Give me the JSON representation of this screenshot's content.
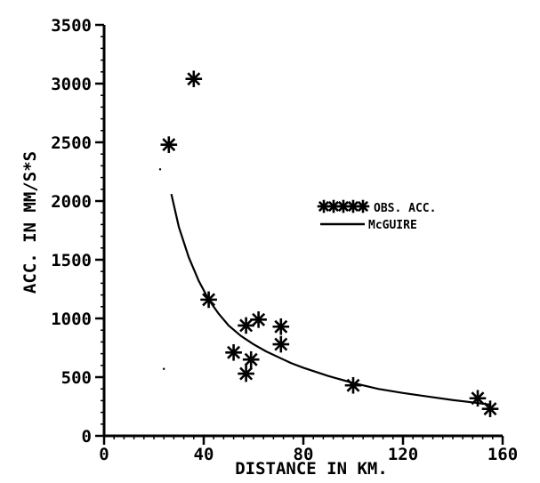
{
  "chart_data": {
    "type": "scatter",
    "xlabel": "DISTANCE IN KM.",
    "ylabel": "ACC. IN MM/S*S",
    "xlim": [
      0,
      160
    ],
    "ylim": [
      0,
      3500
    ],
    "xticks": [
      0,
      40,
      80,
      120,
      160
    ],
    "yticks": [
      0,
      500,
      1000,
      1500,
      2000,
      2500,
      3000,
      3500
    ],
    "x_minor_step": 4,
    "y_minor_step": 100,
    "grid": false,
    "legend_placement": "right",
    "series": [
      {
        "name": "OBS. ACC.",
        "kind": "scatter",
        "marker": "asterisk",
        "x": [
          26,
          36,
          42,
          52,
          57,
          57,
          59,
          62,
          71,
          71,
          100,
          150,
          155
        ],
        "y": [
          2480,
          3040,
          1160,
          710,
          940,
          530,
          650,
          990,
          780,
          930,
          430,
          320,
          230
        ]
      },
      {
        "name": "McGUIRE",
        "kind": "line",
        "x": [
          27,
          30,
          34,
          38,
          42,
          46,
          50,
          55,
          60,
          65,
          70,
          75,
          80,
          90,
          100,
          110,
          120,
          130,
          140,
          150,
          155
        ],
        "y": [
          2060,
          1780,
          1520,
          1320,
          1160,
          1040,
          940,
          850,
          780,
          720,
          670,
          620,
          580,
          510,
          450,
          400,
          365,
          335,
          305,
          280,
          265
        ]
      }
    ],
    "stray_points": [
      {
        "x": 22.5,
        "y": 2270
      },
      {
        "x": 24,
        "y": 570
      }
    ]
  }
}
